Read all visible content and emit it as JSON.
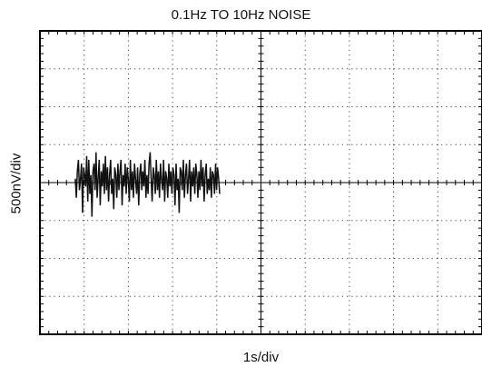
{
  "chart_data": {
    "type": "line",
    "title": "0.1Hz TO 10Hz NOISE",
    "xlabel": "1s/div",
    "ylabel": "500nV/div",
    "x_divisions": 10,
    "y_divisions": 8,
    "grid": true,
    "grid_style": "dotted",
    "trace_color": "#111111",
    "series": [
      {
        "x_unit": "div",
        "y_unit": "div",
        "x_start": 0.8,
        "x_step": 0.0235,
        "y": [
          0.1,
          -0.4,
          0.3,
          0.6,
          -0.2,
          0.1,
          0.5,
          -0.8,
          0.4,
          0.2,
          -0.1,
          0.7,
          -0.5,
          0.6,
          -0.3,
          0.2,
          -0.9,
          0.3,
          0.5,
          -0.2,
          0.8,
          -0.4,
          0.1,
          0.6,
          -0.6,
          0.3,
          -0.1,
          0.5,
          -0.3,
          0.7,
          -0.2,
          0.4,
          -0.5,
          0.2,
          0.6,
          -0.3,
          0.1,
          -0.7,
          0.4,
          0.2,
          -0.4,
          0.5,
          -0.2,
          0.3,
          0.6,
          -0.6,
          0.2,
          -0.1,
          0.5,
          -0.3,
          0.4,
          0.1,
          -0.5,
          0.6,
          -0.2,
          0.3,
          -0.4,
          0.5,
          0.1,
          -0.3,
          0.4,
          -0.6,
          0.2,
          0.5,
          -0.2,
          0.3,
          -0.1,
          0.6,
          -0.4,
          0.2,
          -0.3,
          0.5,
          0.8,
          0.1,
          -0.5,
          0.4,
          0.2,
          -0.3,
          0.6,
          -0.2,
          0.3,
          -0.4,
          0.5,
          0.1,
          -0.2,
          0.6,
          -0.5,
          0.3,
          0.1,
          -0.4,
          0.5,
          -0.1,
          0.3,
          -0.3,
          0.4,
          0.2,
          -0.6,
          0.5,
          -0.2,
          0.1,
          -0.8,
          0.4,
          0.3,
          -0.2,
          0.6,
          -0.4,
          0.2,
          0.5,
          -0.3,
          0.1,
          0.6,
          -0.5,
          0.3,
          -0.1,
          0.4,
          -0.3,
          0.5,
          0.2,
          -0.4,
          0.3,
          -0.2,
          0.6,
          -0.1,
          0.4,
          -0.5,
          0.2,
          0.5,
          -0.3,
          0.1,
          -0.2,
          0.4,
          -0.4,
          0.3,
          0.2,
          -0.3,
          0.5,
          -0.2,
          0.4,
          0.1,
          -0.3
        ]
      }
    ]
  }
}
